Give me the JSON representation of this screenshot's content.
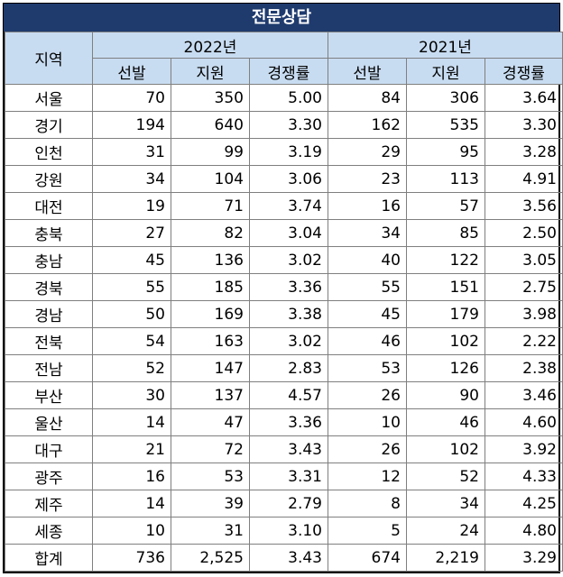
{
  "title": "전문상담",
  "headers": {
    "region": "지역",
    "year_a": "2022년",
    "year_b": "2021년",
    "sub": [
      "선발",
      "지원",
      "경쟁률",
      "선발",
      "지원",
      "경쟁률"
    ]
  },
  "rows": [
    [
      "서울",
      "70",
      "350",
      "5.00",
      "84",
      "306",
      "3.64"
    ],
    [
      "경기",
      "194",
      "640",
      "3.30",
      "162",
      "535",
      "3.30"
    ],
    [
      "인천",
      "31",
      "99",
      "3.19",
      "29",
      "95",
      "3.28"
    ],
    [
      "강원",
      "34",
      "104",
      "3.06",
      "23",
      "113",
      "4.91"
    ],
    [
      "대전",
      "19",
      "71",
      "3.74",
      "16",
      "57",
      "3.56"
    ],
    [
      "충북",
      "27",
      "82",
      "3.04",
      "34",
      "85",
      "2.50"
    ],
    [
      "충남",
      "45",
      "136",
      "3.02",
      "40",
      "122",
      "3.05"
    ],
    [
      "경북",
      "55",
      "185",
      "3.36",
      "55",
      "151",
      "2.75"
    ],
    [
      "경남",
      "50",
      "169",
      "3.38",
      "45",
      "179",
      "3.98"
    ],
    [
      "전북",
      "54",
      "163",
      "3.02",
      "46",
      "102",
      "2.22"
    ],
    [
      "전남",
      "52",
      "147",
      "2.83",
      "53",
      "126",
      "2.38"
    ],
    [
      "부산",
      "30",
      "137",
      "4.57",
      "26",
      "90",
      "3.46"
    ],
    [
      "울산",
      "14",
      "47",
      "3.36",
      "10",
      "46",
      "4.60"
    ],
    [
      "대구",
      "21",
      "72",
      "3.43",
      "26",
      "102",
      "3.92"
    ],
    [
      "광주",
      "16",
      "53",
      "3.31",
      "12",
      "52",
      "4.33"
    ],
    [
      "제주",
      "14",
      "39",
      "2.79",
      "8",
      "34",
      "4.25"
    ],
    [
      "세종",
      "10",
      "31",
      "3.10",
      "5",
      "24",
      "4.80"
    ],
    [
      "합계",
      "736",
      "2,525",
      "3.43",
      "674",
      "2,219",
      "3.29"
    ]
  ]
}
